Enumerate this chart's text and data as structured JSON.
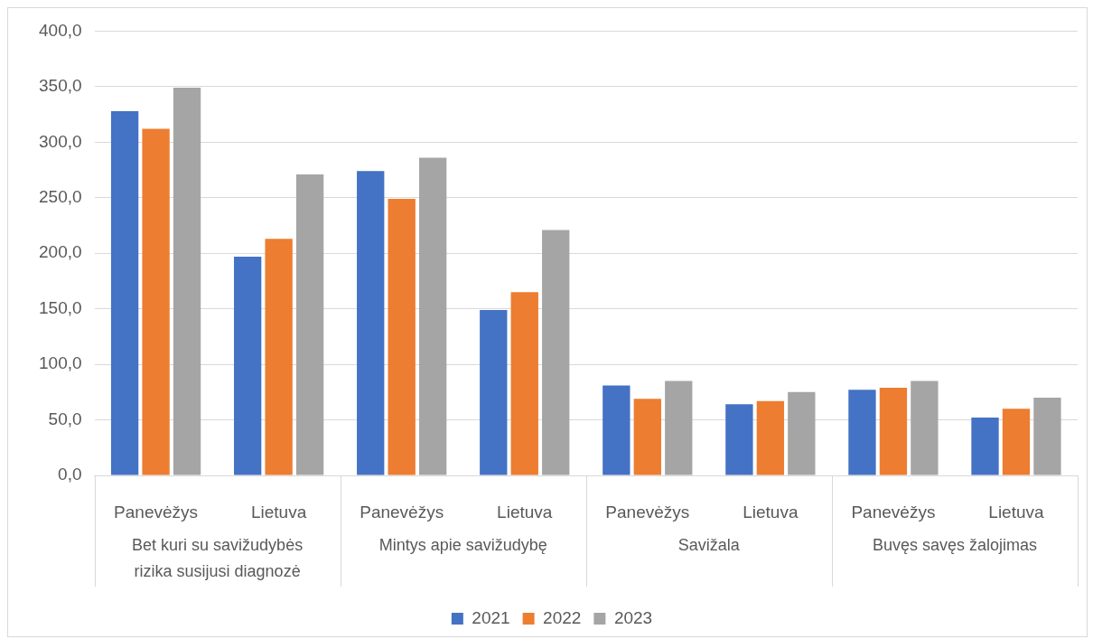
{
  "chart_data": {
    "type": "bar",
    "categories": [
      "Panevėžys",
      "Lietuva",
      "Panevėžys",
      "Lietuva",
      "Panevėžys",
      "Lietuva",
      "Panevėžys",
      "Lietuva"
    ],
    "annotations": [
      "Bet kuri su savižudybės rizika susijusi diagnozė",
      "Mintys apie savižudybę",
      "Savižala",
      "Buvęs savęs žalojimas"
    ],
    "series": [
      {
        "name": "2021",
        "color": "#4472c4",
        "values": [
          328,
          197,
          274,
          149,
          81,
          64,
          77,
          52
        ]
      },
      {
        "name": "2022",
        "color": "#ed7d31",
        "values": [
          312,
          213,
          249,
          165,
          69,
          67,
          79,
          60
        ]
      },
      {
        "name": "2023",
        "color": "#a5a5a5",
        "values": [
          349,
          271,
          286,
          221,
          85,
          75,
          85,
          70
        ]
      }
    ],
    "ylim": [
      0,
      400
    ],
    "yticks": [
      {
        "value": 0,
        "label": "0,0"
      },
      {
        "value": 50,
        "label": "50,0"
      },
      {
        "value": 100,
        "label": "100,0"
      },
      {
        "value": 150,
        "label": "150,0"
      },
      {
        "value": 200,
        "label": "200,0"
      },
      {
        "value": 250,
        "label": "250,0"
      },
      {
        "value": 300,
        "label": "300,0"
      },
      {
        "value": 350,
        "label": "350,0"
      },
      {
        "value": 400,
        "label": "400,0"
      }
    ],
    "grid": "y",
    "legend": "bottom"
  }
}
